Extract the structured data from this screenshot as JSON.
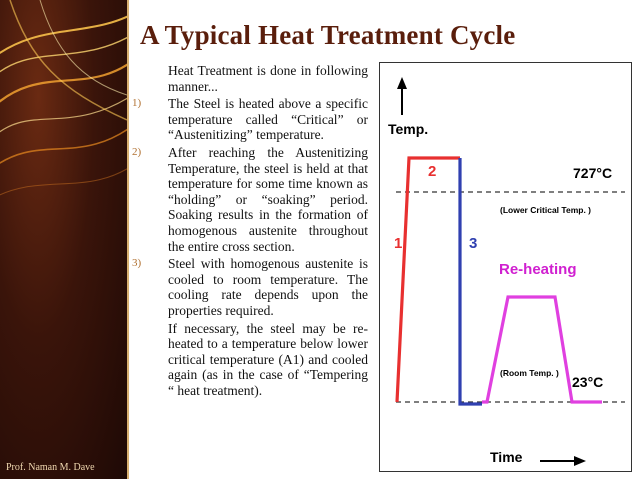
{
  "slide": {
    "title": "A Typical Heat Treatment Cycle",
    "footer": "Prof. Naman M. Dave"
  },
  "content": {
    "intro": "Heat Treatment is done in following manner...",
    "steps": [
      {
        "number": "1)",
        "text": "The Steel is heated above a specific temperature called “Critical” or “Austenitizing” temperature."
      },
      {
        "number": "2)",
        "text": "After reaching the Austenitizing Temperature, the steel is held at that temperature for some time known as “holding” or “soaking” period. Soaking results in the formation of homogenous austenite throughout the entire cross section."
      },
      {
        "number": "3)",
        "text": "Steel with homogenous austenite is cooled to room temperature. The cooling rate depends upon the properties required."
      }
    ],
    "extra": "If necessary, the steel may be re-heated to a temperature below lower critical temperature (A1) and cooled again (as in the case of “Tempering “ heat treatment)."
  },
  "diagram": {
    "y_axis_label": "Temp.",
    "x_axis_label": "Time",
    "upper_temp": "727°C",
    "upper_line_label": "(Lower Critical Temp. )",
    "lower_temp": "23°C",
    "lower_line_label": "(Room Temp. )",
    "segment_1_label": "1",
    "segment_2_label": "2",
    "segment_3_label": "3",
    "reheating_label": "Re-heating",
    "colors": {
      "heating": "#e83030",
      "cooling": "#3040b0",
      "reheating": "#e040e0",
      "label_red": "#e83030",
      "label_blue": "#3040b0",
      "label_magenta": "#d020d0"
    }
  }
}
